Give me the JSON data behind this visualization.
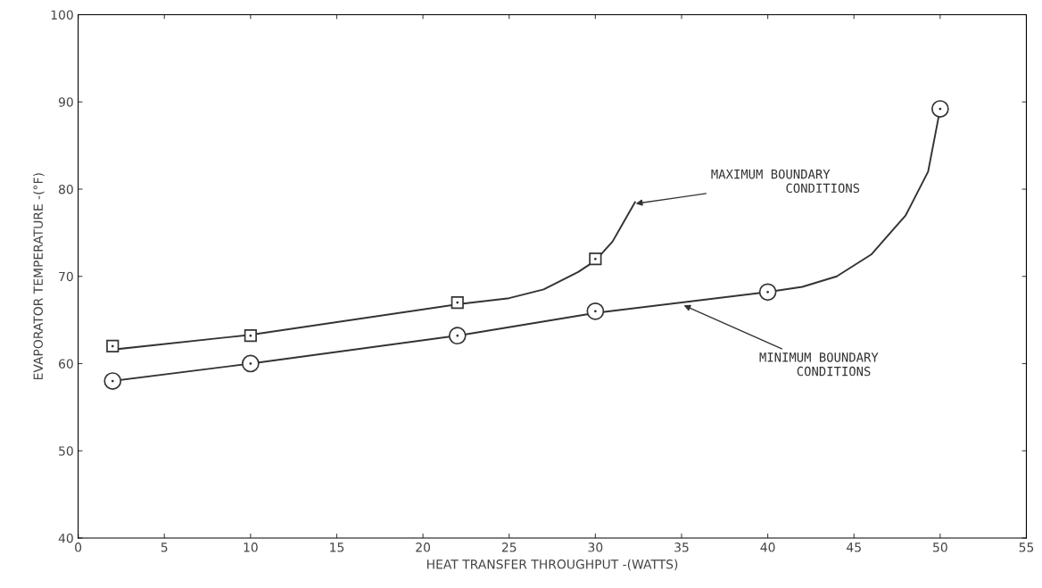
{
  "chart_data": {
    "type": "line",
    "xlabel": "HEAT TRANSFER THROUGHPUT -(WATTS)",
    "ylabel": "EVAPORATOR TEMPERATURE -(°F)",
    "xlim": [
      0,
      55
    ],
    "xticks": [
      0,
      5,
      10,
      15,
      20,
      25,
      30,
      35,
      40,
      45,
      50,
      55
    ],
    "ylim": [
      40,
      100
    ],
    "yticks": [
      40,
      50,
      60,
      70,
      80,
      90,
      100
    ],
    "grid": false,
    "legend": false,
    "series": [
      {
        "color": "#333333",
        "marker": "none",
        "x": [
          2,
          10,
          22,
          25,
          27,
          29,
          30,
          31,
          32.3
        ],
        "values": [
          61.6,
          63.3,
          66.8,
          67.5,
          68.5,
          70.5,
          71.8,
          74,
          78.5
        ]
      },
      {
        "type": "scatter",
        "color": "#333333",
        "marker": "square",
        "x": [
          2,
          10,
          22,
          30
        ],
        "values": [
          62,
          63.2,
          67,
          72
        ]
      },
      {
        "color": "#333333",
        "marker": "none",
        "x": [
          2,
          10,
          22,
          30,
          40,
          42,
          44,
          46,
          48,
          49.3,
          50
        ],
        "values": [
          58,
          60,
          63.2,
          65.8,
          68.2,
          68.8,
          70,
          72.5,
          77,
          82,
          89.2
        ]
      },
      {
        "type": "scatter",
        "color": "#333333",
        "marker": "circle",
        "x": [
          2,
          10,
          22,
          30,
          40,
          50
        ],
        "values": [
          58,
          60,
          63.2,
          66,
          68.2,
          89.2
        ]
      }
    ],
    "annotations": [
      {
        "text": "MAXIMUM BOUNDARY\n          CONDITIONS",
        "x": 32.2,
        "y": 78.3
      },
      {
        "text": "MINIMUM BOUNDARY\n     CONDITIONS",
        "x": 35,
        "y": 66.8
      }
    ]
  }
}
